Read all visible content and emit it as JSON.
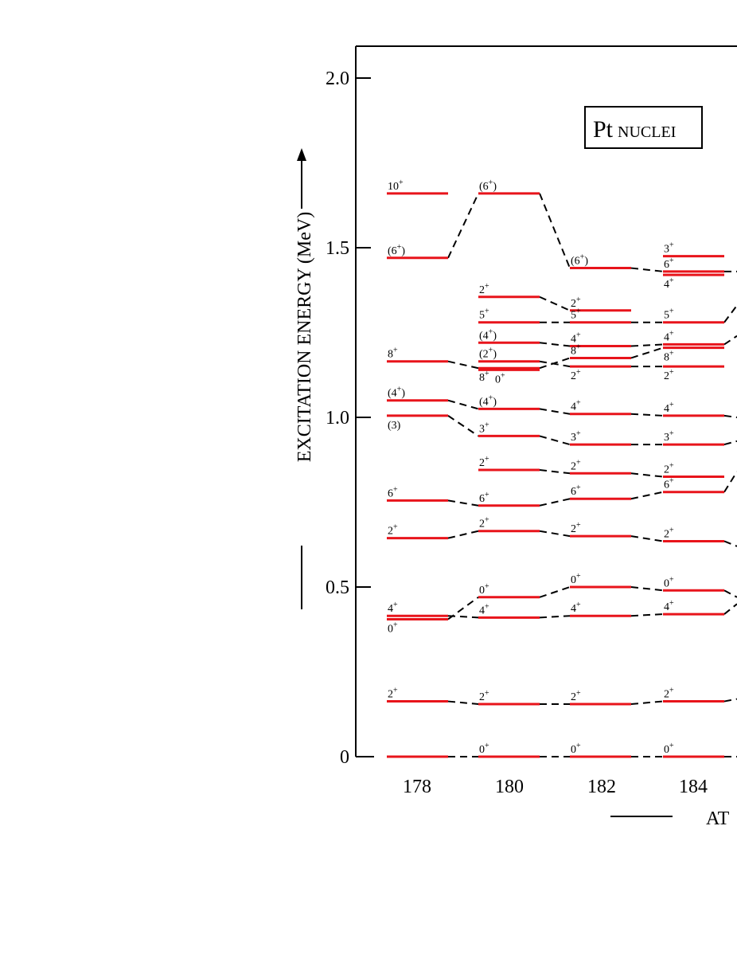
{
  "chart_data": {
    "type": "level-scheme",
    "title": "Pt",
    "title_suffix": "NUCLEI",
    "ylabel": "EXCITATION ENERGY (MeV)",
    "xlabel_visible": "AT",
    "ylim": [
      0,
      2.08
    ],
    "yticks": [
      {
        "value": 0,
        "label": "0"
      },
      {
        "value": 0.5,
        "label": "0.5"
      },
      {
        "value": 1.0,
        "label": "1.0"
      },
      {
        "value": 1.5,
        "label": "1.5"
      },
      {
        "value": 2.0,
        "label": "2.0"
      }
    ],
    "columns": [
      {
        "label": "178",
        "levels": [
          {
            "id": "178-0",
            "E": 0.0,
            "spin": "0",
            "parity": "+",
            "labeled": false
          },
          {
            "id": "178-2a",
            "E": 0.163,
            "spin": "2",
            "parity": "+"
          },
          {
            "id": "178-0b",
            "E": 0.405,
            "spin": "0",
            "parity": "+",
            "pos": "below"
          },
          {
            "id": "178-4a",
            "E": 0.415,
            "spin": "4",
            "parity": "+"
          },
          {
            "id": "178-2b",
            "E": 0.644,
            "spin": "2",
            "parity": "+"
          },
          {
            "id": "178-6a",
            "E": 0.755,
            "spin": "6",
            "parity": "+"
          },
          {
            "id": "178-3",
            "E": 1.005,
            "spin": "(3)",
            "parity": "",
            "pos": "below"
          },
          {
            "id": "178-4b",
            "E": 1.05,
            "spin": "(4",
            "parity": "+",
            "close": ")"
          },
          {
            "id": "178-8",
            "E": 1.165,
            "spin": "8",
            "parity": "+"
          },
          {
            "id": "178-6b",
            "E": 1.47,
            "spin": "(6",
            "parity": "+",
            "close": ")"
          },
          {
            "id": "178-10",
            "E": 1.66,
            "spin": "10",
            "parity": "+"
          }
        ]
      },
      {
        "label": "180",
        "levels": [
          {
            "id": "180-0",
            "E": 0.0,
            "spin": "0",
            "parity": "+"
          },
          {
            "id": "180-2a",
            "E": 0.155,
            "spin": "2",
            "parity": "+"
          },
          {
            "id": "180-4a",
            "E": 0.41,
            "spin": "4",
            "parity": "+"
          },
          {
            "id": "180-0b",
            "E": 0.47,
            "spin": "0",
            "parity": "+"
          },
          {
            "id": "180-2b",
            "E": 0.665,
            "spin": "2",
            "parity": "+"
          },
          {
            "id": "180-6a",
            "E": 0.74,
            "spin": "6",
            "parity": "+"
          },
          {
            "id": "180-2c",
            "E": 0.845,
            "spin": "2",
            "parity": "+"
          },
          {
            "id": "180-3",
            "E": 0.945,
            "spin": "3",
            "parity": "+"
          },
          {
            "id": "180-4b",
            "E": 1.025,
            "spin": "(4",
            "parity": "+",
            "close": ")"
          },
          {
            "id": "180-8",
            "E": 1.145,
            "spin": "8",
            "parity": "+",
            "pos": "below"
          },
          {
            "id": "180-0c",
            "E": 1.14,
            "spin": "0",
            "parity": "+",
            "pos": "below-right"
          },
          {
            "id": "180-2d",
            "E": 1.165,
            "spin": "(2",
            "parity": "+",
            "close": ")"
          },
          {
            "id": "180-4c",
            "E": 1.22,
            "spin": "(4",
            "parity": "+",
            "close": ")"
          },
          {
            "id": "180-5",
            "E": 1.28,
            "spin": "5",
            "parity": "+"
          },
          {
            "id": "180-2e",
            "E": 1.355,
            "spin": "2",
            "parity": "+"
          },
          {
            "id": "180-6b",
            "E": 1.66,
            "spin": "(6",
            "parity": "+",
            "close": ")"
          }
        ]
      },
      {
        "label": "182",
        "levels": [
          {
            "id": "182-0",
            "E": 0.0,
            "spin": "0",
            "parity": "+"
          },
          {
            "id": "182-2a",
            "E": 0.155,
            "spin": "2",
            "parity": "+"
          },
          {
            "id": "182-4a",
            "E": 0.415,
            "spin": "4",
            "parity": "+"
          },
          {
            "id": "182-0b",
            "E": 0.5,
            "spin": "0",
            "parity": "+"
          },
          {
            "id": "182-2b",
            "E": 0.65,
            "spin": "2",
            "parity": "+"
          },
          {
            "id": "182-6a",
            "E": 0.76,
            "spin": "6",
            "parity": "+"
          },
          {
            "id": "182-2c",
            "E": 0.835,
            "spin": "2",
            "parity": "+"
          },
          {
            "id": "182-3",
            "E": 0.92,
            "spin": "3",
            "parity": "+"
          },
          {
            "id": "182-4b",
            "E": 1.01,
            "spin": "4",
            "parity": "+"
          },
          {
            "id": "182-2d",
            "E": 1.15,
            "spin": "2",
            "parity": "+",
            "pos": "below"
          },
          {
            "id": "182-8",
            "E": 1.175,
            "spin": "8",
            "parity": "+"
          },
          {
            "id": "182-4c",
            "E": 1.21,
            "spin": "4",
            "parity": "+"
          },
          {
            "id": "182-5",
            "E": 1.28,
            "spin": "5",
            "parity": "+"
          },
          {
            "id": "182-2e",
            "E": 1.315,
            "spin": "2",
            "parity": "+"
          },
          {
            "id": "182-6b",
            "E": 1.44,
            "spin": "(6",
            "parity": "+",
            "close": ")"
          }
        ]
      },
      {
        "label": "184",
        "levels": [
          {
            "id": "184-0",
            "E": 0.0,
            "spin": "0",
            "parity": "+"
          },
          {
            "id": "184-2a",
            "E": 0.163,
            "spin": "2",
            "parity": "+"
          },
          {
            "id": "184-4a",
            "E": 0.42,
            "spin": "4",
            "parity": "+"
          },
          {
            "id": "184-0b",
            "E": 0.49,
            "spin": "0",
            "parity": "+"
          },
          {
            "id": "184-2b",
            "E": 0.635,
            "spin": "2",
            "parity": "+"
          },
          {
            "id": "184-6a",
            "E": 0.78,
            "spin": "6",
            "parity": "+"
          },
          {
            "id": "184-2c",
            "E": 0.825,
            "spin": "2",
            "parity": "+"
          },
          {
            "id": "184-3",
            "E": 0.92,
            "spin": "3",
            "parity": "+"
          },
          {
            "id": "184-4b",
            "E": 1.005,
            "spin": "4",
            "parity": "+"
          },
          {
            "id": "184-2d",
            "E": 1.15,
            "spin": "2",
            "parity": "+",
            "pos": "below"
          },
          {
            "id": "184-8",
            "E": 1.205,
            "spin": "8",
            "parity": "+",
            "pos": "below"
          },
          {
            "id": "184-4c",
            "E": 1.215,
            "spin": "4",
            "parity": "+"
          },
          {
            "id": "184-5",
            "E": 1.28,
            "spin": "5",
            "parity": "+"
          },
          {
            "id": "184-4d",
            "E": 1.42,
            "spin": "4",
            "parity": "+",
            "pos": "below"
          },
          {
            "id": "184-6b",
            "E": 1.43,
            "spin": "6",
            "parity": "+"
          },
          {
            "id": "184-3b",
            "E": 1.475,
            "spin": "3",
            "parity": "+"
          }
        ]
      }
    ],
    "connections": [
      [
        "178-0",
        "180-0"
      ],
      [
        "180-0",
        "182-0"
      ],
      [
        "182-0",
        "184-0"
      ],
      [
        "178-2a",
        "180-2a"
      ],
      [
        "180-2a",
        "182-2a"
      ],
      [
        "182-2a",
        "184-2a"
      ],
      [
        "178-0b",
        "180-0b"
      ],
      [
        "180-0b",
        "182-0b"
      ],
      [
        "182-0b",
        "184-0b"
      ],
      [
        "178-4a",
        "180-4a"
      ],
      [
        "180-4a",
        "182-4a"
      ],
      [
        "182-4a",
        "184-4a"
      ],
      [
        "178-2b",
        "180-2b"
      ],
      [
        "180-2b",
        "182-2b"
      ],
      [
        "182-2b",
        "184-2b"
      ],
      [
        "178-6a",
        "180-6a"
      ],
      [
        "180-6a",
        "182-6a"
      ],
      [
        "182-6a",
        "184-6a"
      ],
      [
        "180-2c",
        "182-2c"
      ],
      [
        "182-2c",
        "184-2c"
      ],
      [
        "178-3",
        "180-3"
      ],
      [
        "180-3",
        "182-3"
      ],
      [
        "182-3",
        "184-3"
      ],
      [
        "178-4b",
        "180-4b"
      ],
      [
        "180-4b",
        "182-4b"
      ],
      [
        "182-4b",
        "184-4b"
      ],
      [
        "178-8",
        "180-8"
      ],
      [
        "180-8",
        "182-8"
      ],
      [
        "182-8",
        "184-8"
      ],
      [
        "180-2d",
        "182-2d"
      ],
      [
        "182-2d",
        "184-2d"
      ],
      [
        "180-4c",
        "182-4c"
      ],
      [
        "182-4c",
        "184-4c"
      ],
      [
        "180-5",
        "182-5"
      ],
      [
        "182-5",
        "184-5"
      ],
      [
        "180-2e",
        "182-2e"
      ],
      [
        "178-6b",
        "180-6b"
      ],
      [
        "180-6b",
        "182-6b"
      ],
      [
        "182-6b",
        "184-6b"
      ]
    ],
    "line_color": "#e8141b",
    "connector_color": "#000000"
  }
}
